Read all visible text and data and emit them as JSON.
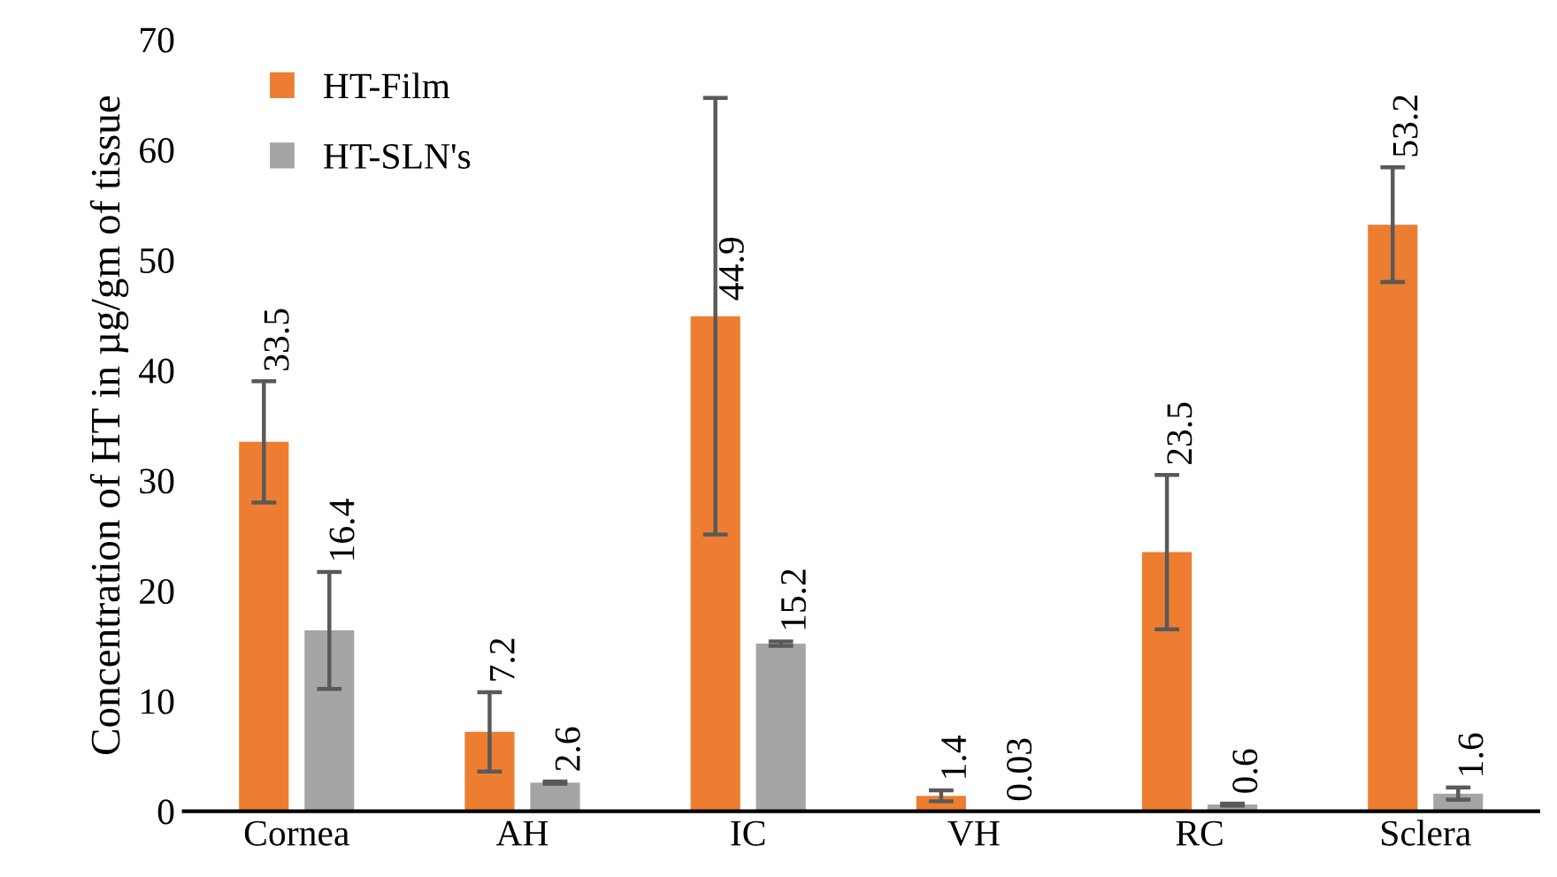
{
  "chart_data": {
    "type": "bar",
    "ylabel": "Concentration of HT in µg/gm of tissue",
    "categories": [
      "Cornea",
      "AH",
      "IC",
      "VH",
      "RC",
      "Sclera"
    ],
    "series": [
      {
        "name": "HT-Film",
        "color": "#ed7d31",
        "values": [
          33.5,
          7.2,
          44.9,
          1.4,
          23.5,
          53.2
        ],
        "errors": [
          5.5,
          3.6,
          19.8,
          0.5,
          7.0,
          5.2
        ]
      },
      {
        "name": "HT-SLN's",
        "color": "#a5a5a5",
        "values": [
          16.4,
          2.6,
          15.2,
          0.03,
          0.6,
          1.6
        ],
        "errors": [
          5.3,
          0.1,
          0.2,
          null,
          0.1,
          0.55
        ]
      }
    ],
    "ylim": [
      0,
      70
    ],
    "yticks": [
      0,
      10,
      20,
      30,
      40,
      50,
      60,
      70
    ],
    "data_labels": true,
    "grid": false,
    "legend": "top left"
  }
}
